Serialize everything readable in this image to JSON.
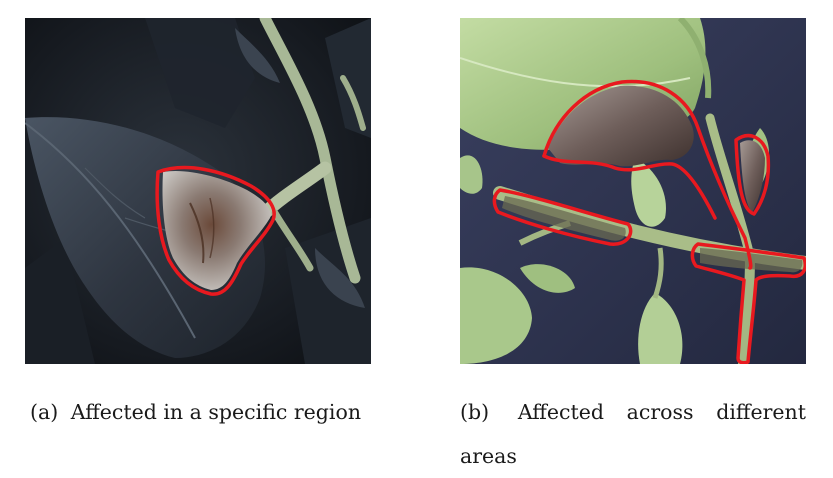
{
  "figure": {
    "panels": [
      {
        "label": "(a)",
        "caption": "Affected in a specific region",
        "image_description_icon": "leaf-with-single-lesion-icon"
      },
      {
        "label": "(b)",
        "caption": "Affected across different areas",
        "image_description_icon": "leaf-with-multiple-lesions-icon"
      }
    ],
    "colors": {
      "outline": "#e8191f",
      "dark_leaf": "#2e3540",
      "dark_background": "#161a20",
      "light_leaf": "#a9c98a",
      "blue_background": "#2f3554",
      "stem": "#b9c9a0"
    }
  }
}
